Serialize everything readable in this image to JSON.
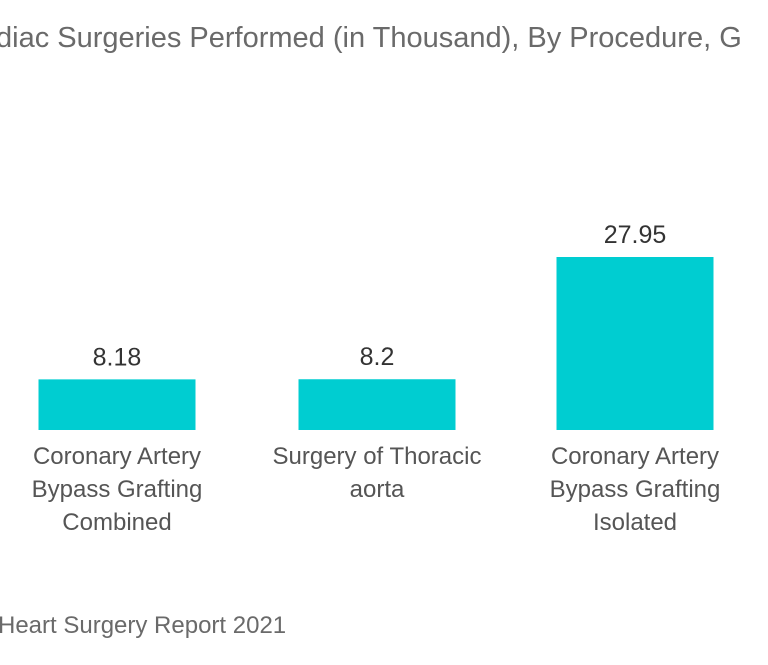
{
  "title": "diac Surgeries Performed (in Thousand), By Procedure, G",
  "source": "Heart Surgery Report 2021",
  "colors": {
    "bar": "#00CDD1",
    "text": "#333333",
    "muted": "#6a6a6a"
  },
  "chart_data": {
    "type": "bar",
    "title": "diac Surgeries Performed (in Thousand), By Procedure, G",
    "categories": [
      [
        "Coronary Artery",
        "Bypass Grafting",
        "Combined"
      ],
      [
        "Surgery of Thoracic",
        "aorta"
      ],
      [
        "Coronary Artery",
        "Bypass Grafting",
        "Isolated"
      ]
    ],
    "values": [
      8.18,
      8.2,
      27.95
    ],
    "value_labels": [
      "8.18",
      "8.2",
      "27.95"
    ],
    "grid": false,
    "ylim": [
      0,
      35
    ]
  }
}
